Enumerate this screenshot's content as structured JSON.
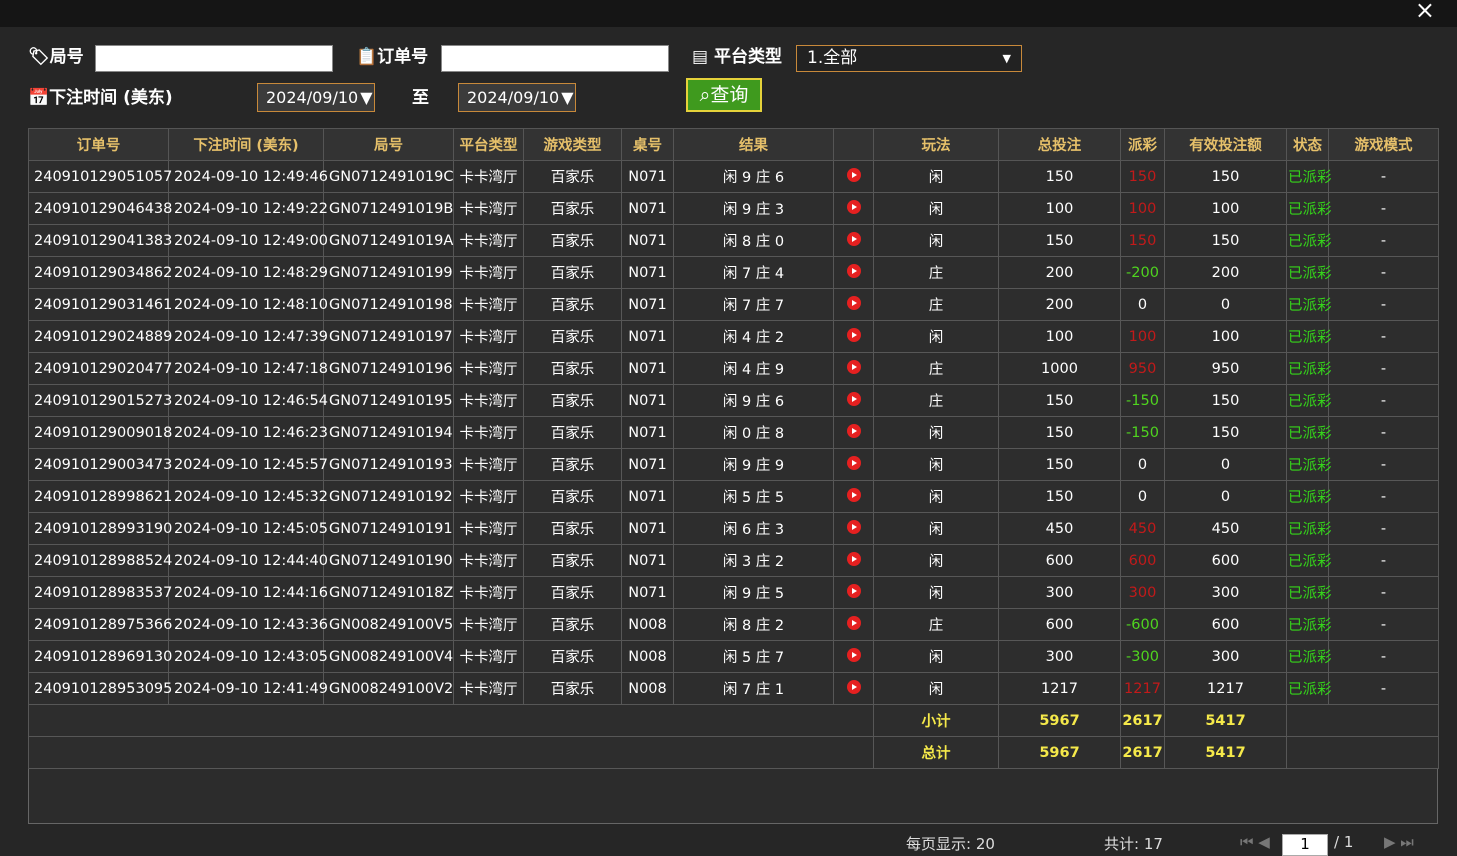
{
  "filters": {
    "round_label": "局号",
    "order_label": "订单号",
    "platform_label": "平台类型",
    "platform_value": "1.全部",
    "time_label": "下注时间 (美东)",
    "date_from": "2024/09/10",
    "to_label": "至",
    "date_to": "2024/09/10",
    "query_button": "查询"
  },
  "table": {
    "headers": [
      "订单号",
      "下注时间 (美东)",
      "局号",
      "平台类型",
      "游戏类型",
      "桌号",
      "结果",
      "玩法",
      "总投注",
      "派彩",
      "有效投注额",
      "状态",
      "游戏模式"
    ],
    "rows": [
      [
        "240910129051057",
        "2024-09-10 12:49:46",
        "GN0712491019C",
        "卡卡湾厅",
        "百家乐",
        "N071",
        "闲 9 庄 6",
        "闲",
        150,
        150,
        150,
        "已派彩",
        "-"
      ],
      [
        "240910129046438",
        "2024-09-10 12:49:22",
        "GN0712491019B",
        "卡卡湾厅",
        "百家乐",
        "N071",
        "闲 9 庄 3",
        "闲",
        100,
        100,
        100,
        "已派彩",
        "-"
      ],
      [
        "240910129041383",
        "2024-09-10 12:49:00",
        "GN0712491019A",
        "卡卡湾厅",
        "百家乐",
        "N071",
        "闲 8 庄 0",
        "闲",
        150,
        150,
        150,
        "已派彩",
        "-"
      ],
      [
        "240910129034862",
        "2024-09-10 12:48:29",
        "GN07124910199",
        "卡卡湾厅",
        "百家乐",
        "N071",
        "闲 7 庄 4",
        "庄",
        200,
        -200,
        200,
        "已派彩",
        "-"
      ],
      [
        "240910129031461",
        "2024-09-10 12:48:10",
        "GN07124910198",
        "卡卡湾厅",
        "百家乐",
        "N071",
        "闲 7 庄 7",
        "庄",
        200,
        0,
        0,
        "已派彩",
        "-"
      ],
      [
        "240910129024889",
        "2024-09-10 12:47:39",
        "GN07124910197",
        "卡卡湾厅",
        "百家乐",
        "N071",
        "闲 4 庄 2",
        "闲",
        100,
        100,
        100,
        "已派彩",
        "-"
      ],
      [
        "240910129020477",
        "2024-09-10 12:47:18",
        "GN07124910196",
        "卡卡湾厅",
        "百家乐",
        "N071",
        "闲 4 庄 9",
        "庄",
        1000,
        950,
        950,
        "已派彩",
        "-"
      ],
      [
        "240910129015273",
        "2024-09-10 12:46:54",
        "GN07124910195",
        "卡卡湾厅",
        "百家乐",
        "N071",
        "闲 9 庄 6",
        "庄",
        150,
        -150,
        150,
        "已派彩",
        "-"
      ],
      [
        "240910129009018",
        "2024-09-10 12:46:23",
        "GN07124910194",
        "卡卡湾厅",
        "百家乐",
        "N071",
        "闲 0 庄 8",
        "闲",
        150,
        -150,
        150,
        "已派彩",
        "-"
      ],
      [
        "240910129003473",
        "2024-09-10 12:45:57",
        "GN07124910193",
        "卡卡湾厅",
        "百家乐",
        "N071",
        "闲 9 庄 9",
        "闲",
        150,
        0,
        0,
        "已派彩",
        "-"
      ],
      [
        "240910128998621",
        "2024-09-10 12:45:32",
        "GN07124910192",
        "卡卡湾厅",
        "百家乐",
        "N071",
        "闲 5 庄 5",
        "闲",
        150,
        0,
        0,
        "已派彩",
        "-"
      ],
      [
        "240910128993190",
        "2024-09-10 12:45:05",
        "GN07124910191",
        "卡卡湾厅",
        "百家乐",
        "N071",
        "闲 6 庄 3",
        "闲",
        450,
        450,
        450,
        "已派彩",
        "-"
      ],
      [
        "240910128988524",
        "2024-09-10 12:44:40",
        "GN07124910190",
        "卡卡湾厅",
        "百家乐",
        "N071",
        "闲 3 庄 2",
        "闲",
        600,
        600,
        600,
        "已派彩",
        "-"
      ],
      [
        "240910128983537",
        "2024-09-10 12:44:16",
        "GN0712491018Z",
        "卡卡湾厅",
        "百家乐",
        "N071",
        "闲 9 庄 5",
        "闲",
        300,
        300,
        300,
        "已派彩",
        "-"
      ],
      [
        "240910128975366",
        "2024-09-10 12:43:36",
        "GN008249100V5",
        "卡卡湾厅",
        "百家乐",
        "N008",
        "闲 8 庄 2",
        "庄",
        600,
        -600,
        600,
        "已派彩",
        "-"
      ],
      [
        "240910128969130",
        "2024-09-10 12:43:05",
        "GN008249100V4",
        "卡卡湾厅",
        "百家乐",
        "N008",
        "闲 5 庄 7",
        "闲",
        300,
        -300,
        300,
        "已派彩",
        "-"
      ],
      [
        "240910128953095",
        "2024-09-10 12:41:49",
        "GN008249100V2",
        "卡卡湾厅",
        "百家乐",
        "N008",
        "闲 7 庄 1",
        "闲",
        1217,
        1217,
        1217,
        "已派彩",
        "-"
      ]
    ],
    "subtotal": {
      "label": "小计",
      "bet": 5967,
      "payout": 2617,
      "valid": 5417
    },
    "total": {
      "label": "总计",
      "bet": 5967,
      "payout": 2617,
      "valid": 5417
    }
  },
  "pagination": {
    "page_size": "每页显示: 20",
    "total": "共计: 17",
    "current_page": "1",
    "page_count": "/ 1"
  }
}
